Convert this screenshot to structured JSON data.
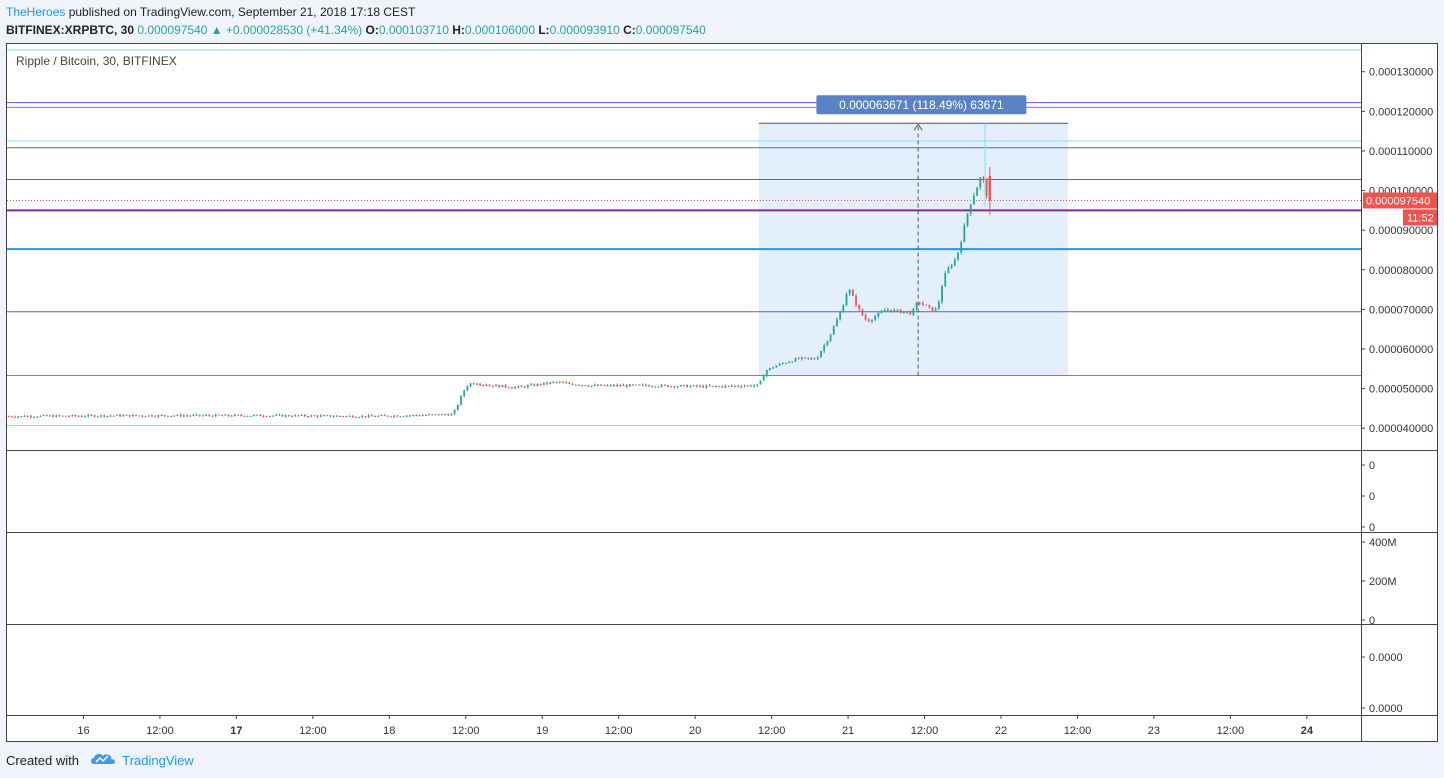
{
  "header": {
    "author": "TheHeroes",
    "published_text": " published on TradingView.com, September 21, 2018 17:18 CEST",
    "symbol": "BITFINEX:XRPBTC, 30",
    "last": "0.000097540",
    "change": "+0.000028530 (+41.34%)",
    "o_label": "O:",
    "o_value": "0.000103710",
    "h_label": "H:",
    "h_value": "0.000106000",
    "l_label": "L:",
    "l_value": "0.000093910",
    "c_label": "C:",
    "c_value": "0.000097540"
  },
  "footer": {
    "created_with": "Created with",
    "brand": "TradingView"
  },
  "colors": {
    "up": "#26a69a",
    "down": "#ef5350",
    "axis": "#444444",
    "cyan": "#7ee0f0",
    "magenta": "#e040fb",
    "violet": "#5c5cd6",
    "purple": "#8e24aa",
    "blue": "#2196f3",
    "orchid": "#da7ee0",
    "measure_fill": "#e3effb",
    "measure_label_bg": "#5b82c5",
    "price_tag_bg": "#ef5350"
  },
  "chart_data": {
    "type": "candlestick",
    "title": "Ripple / Bitcoin, 30, BITFINEX",
    "y_range": [
      3.45e-05,
      0.000137
    ],
    "y_ticks": [
      "0.000130000",
      "0.000120000",
      "0.000110000",
      "0.000100000",
      "0.000090000",
      "0.000080000",
      "0.000070000",
      "0.000060000",
      "0.000050000",
      "0.000040000"
    ],
    "x_range_hours": [
      0,
      212.5
    ],
    "x_ticks": [
      {
        "label": "16",
        "hour": 12,
        "bold": false
      },
      {
        "label": "12:00",
        "hour": 24,
        "bold": false
      },
      {
        "label": "17",
        "hour": 36,
        "bold": true
      },
      {
        "label": "12:00",
        "hour": 48,
        "bold": false
      },
      {
        "label": "18",
        "hour": 60,
        "bold": false
      },
      {
        "label": "12:00",
        "hour": 72,
        "bold": false
      },
      {
        "label": "19",
        "hour": 84,
        "bold": false
      },
      {
        "label": "12:00",
        "hour": 96,
        "bold": false
      },
      {
        "label": "20",
        "hour": 108,
        "bold": false
      },
      {
        "label": "12:00",
        "hour": 120,
        "bold": false
      },
      {
        "label": "21",
        "hour": 132,
        "bold": false
      },
      {
        "label": "12:00",
        "hour": 144,
        "bold": false
      },
      {
        "label": "22",
        "hour": 156,
        "bold": false
      },
      {
        "label": "12:00",
        "hour": 168,
        "bold": false
      },
      {
        "label": "23",
        "hour": 180,
        "bold": false
      },
      {
        "label": "12:00",
        "hour": 192,
        "bold": false
      },
      {
        "label": "24",
        "hour": 204,
        "bold": true
      }
    ],
    "price_path": [
      [
        0,
        4.3e-05
      ],
      [
        20,
        4.32e-05
      ],
      [
        40,
        4.32e-05
      ],
      [
        57,
        4.3e-05
      ],
      [
        70,
        4.35e-05
      ],
      [
        71,
        4.7e-05
      ],
      [
        72,
        5.05e-05
      ],
      [
        73,
        5.15e-05
      ],
      [
        76,
        5.08e-05
      ],
      [
        80,
        5.03e-05
      ],
      [
        86,
        5.16e-05
      ],
      [
        92,
        5.07e-05
      ],
      [
        100,
        5.08e-05
      ],
      [
        110,
        5.05e-05
      ],
      [
        118,
        5.08e-05
      ],
      [
        119,
        5.45e-05
      ],
      [
        121,
        5.6e-05
      ],
      [
        124,
        5.75e-05
      ],
      [
        127,
        5.75e-05
      ],
      [
        129,
        6.3e-05
      ],
      [
        131,
        7e-05
      ],
      [
        132,
        7.55e-05
      ],
      [
        134,
        6.9e-05
      ],
      [
        135,
        6.7e-05
      ],
      [
        138,
        7e-05
      ],
      [
        142,
        6.9e-05
      ],
      [
        143,
        7.2e-05
      ],
      [
        145,
        7e-05
      ],
      [
        146,
        7e-05
      ],
      [
        147,
        7.8e-05
      ],
      [
        148,
        8.1e-05
      ],
      [
        149,
        8.3e-05
      ],
      [
        150,
        8.9e-05
      ],
      [
        151,
        9.6e-05
      ],
      [
        152,
        0.0001
      ],
      [
        153,
        0.000104
      ],
      [
        154,
        9.75e-05
      ]
    ],
    "horizontal_lines": [
      {
        "price": 0.0001355,
        "color": "cyan",
        "width": 1
      },
      {
        "price": 0.0001222,
        "color": "violet",
        "width": 1
      },
      {
        "price": 0.000121,
        "color": "magenta",
        "width": 1
      },
      {
        "price": 0.0001125,
        "color": "cyan",
        "width": 1
      },
      {
        "price": 0.0001108,
        "color": "violet",
        "width": 1
      },
      {
        "price": 0.0001028,
        "color": "violet",
        "width": 1
      },
      {
        "price": 9.5e-05,
        "color": "purple",
        "width": 2
      },
      {
        "price": 8.52e-05,
        "color": "blue",
        "width": 2
      },
      {
        "price": 6.94e-05,
        "color": "violet",
        "width": 1
      },
      {
        "price": 5.33e-05,
        "color": "magenta",
        "width": 1
      },
      {
        "price": 4.07e-05,
        "color": "cyan",
        "width": 1
      }
    ],
    "measure": {
      "x_start_hour": 118,
      "x_end_hour": 166.5,
      "low": 5.33e-05,
      "high": 0.000117,
      "arrow_hour": 143,
      "label": "0.000063671 (118.49%) 63671"
    },
    "last_price": 9.75e-05,
    "last_price_label": "0.000097540",
    "countdown_label": "11:52",
    "pane2_ticks": [
      "0",
      "0",
      "0"
    ],
    "pane3_ticks": [
      "400M",
      "200M",
      "0"
    ],
    "pane4_ticks": [
      "0.0000",
      "0.0000"
    ]
  }
}
